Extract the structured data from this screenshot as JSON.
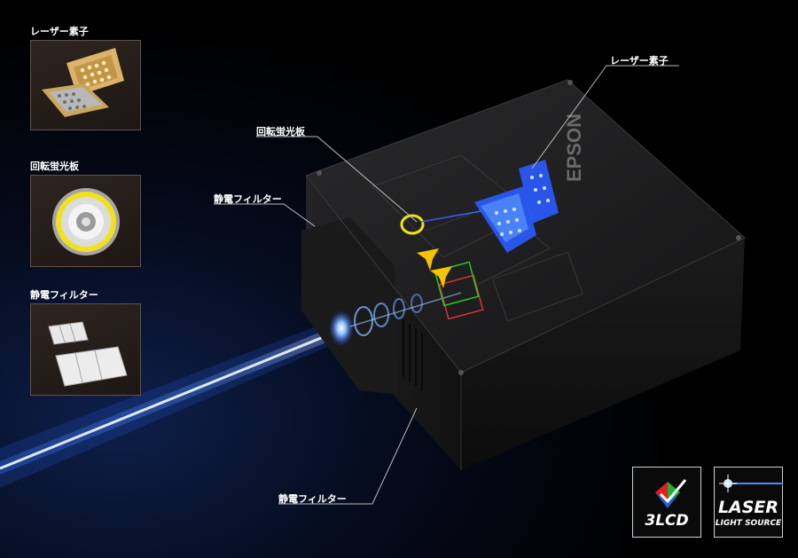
{
  "panels": {
    "laser": {
      "label": "レーザー素子",
      "icon": "laser-module-photo"
    },
    "phosphor": {
      "label": "回転蛍光板",
      "icon": "phosphor-wheel-photo"
    },
    "filter": {
      "label": "静電フィルター",
      "icon": "electrostatic-filter-photo"
    }
  },
  "callouts": {
    "laser": "レーザー素子",
    "phosphor": "回転蛍光板",
    "filter_top": "静電フィルター",
    "filter_bottom": "静電フィルター"
  },
  "projector": {
    "brand": "EPSON"
  },
  "badges": {
    "lcd": {
      "text": "3LCD"
    },
    "laser": {
      "line1": "LASER",
      "line2": "LIGHT SOURCE"
    }
  },
  "colors": {
    "background": "#000000",
    "beam": "#4f8cff",
    "laser_blue": "#2a5cff",
    "phosphor_yellow": "#f2e21a",
    "thumb_border": "#5e5448"
  }
}
